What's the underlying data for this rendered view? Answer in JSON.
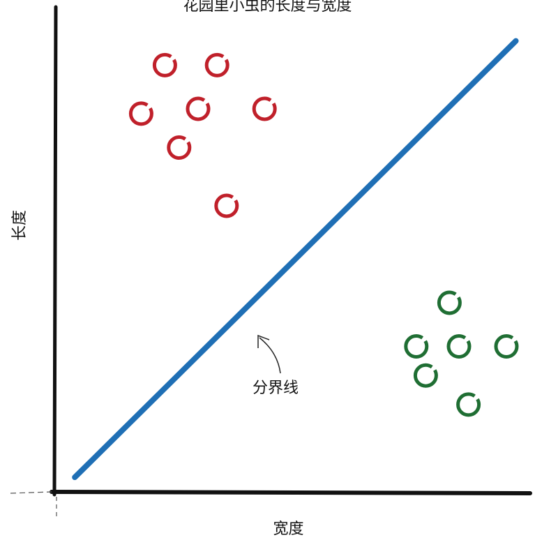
{
  "chart_data": {
    "type": "scatter",
    "title": "花园里小虫的长度与宽度",
    "xlabel": "宽度",
    "ylabel": "长度",
    "xlim": [
      0,
      10
    ],
    "ylim": [
      0,
      10
    ],
    "grid": false,
    "series": [
      {
        "color": "#c0202a",
        "points": [
          {
            "x": 2.3,
            "y": 8.8
          },
          {
            "x": 3.4,
            "y": 8.8
          },
          {
            "x": 1.8,
            "y": 7.8
          },
          {
            "x": 3.0,
            "y": 7.9
          },
          {
            "x": 4.4,
            "y": 7.9
          },
          {
            "x": 2.6,
            "y": 7.1
          },
          {
            "x": 3.6,
            "y": 5.9
          }
        ]
      },
      {
        "color": "#1f6e33",
        "points": [
          {
            "x": 8.3,
            "y": 3.9
          },
          {
            "x": 7.6,
            "y": 3.0
          },
          {
            "x": 8.5,
            "y": 3.0
          },
          {
            "x": 9.5,
            "y": 3.0
          },
          {
            "x": 7.8,
            "y": 2.4
          },
          {
            "x": 8.7,
            "y": 1.8
          }
        ]
      }
    ],
    "boundary_line": {
      "label": "分界线",
      "color": "#1f6fb5",
      "points": [
        {
          "x": 0.4,
          "y": 0.3
        },
        {
          "x": 9.7,
          "y": 9.3
        }
      ]
    }
  }
}
